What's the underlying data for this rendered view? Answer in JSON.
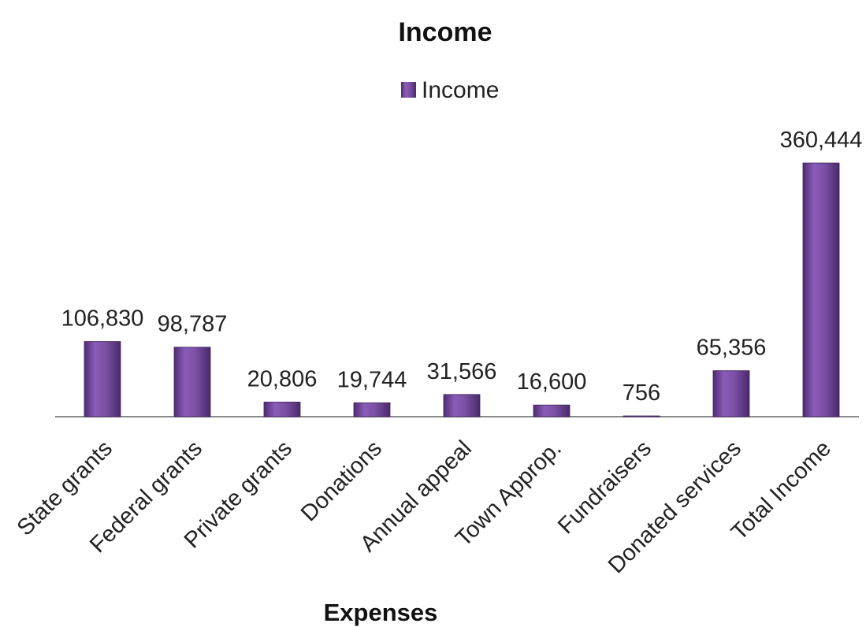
{
  "chart_data": {
    "type": "bar",
    "title": "Income",
    "xlabel": "Expenses",
    "ylabel": "",
    "categories": [
      "State grants",
      "Federal grants",
      "Private grants",
      "Donations",
      "Annual appeal",
      "Town Approp.",
      "Fundraisers",
      "Donated services",
      "Total Income"
    ],
    "series": [
      {
        "name": "Income",
        "values": [
          106830,
          98787,
          20806,
          19744,
          31566,
          16600,
          756,
          65356,
          360444
        ],
        "labels": [
          "106,830",
          "98,787",
          "20,806",
          "19,744",
          "31,566",
          "16,600",
          "756",
          "65,356",
          "360,444"
        ]
      }
    ],
    "ylim": [
      0,
      360444
    ],
    "grid": false,
    "legend": "top-center",
    "colors": {
      "bar": "#7a4fa3",
      "bar_dark": "#4f2c72",
      "bar_light": "#a67ccb",
      "axis": "#888888"
    }
  }
}
